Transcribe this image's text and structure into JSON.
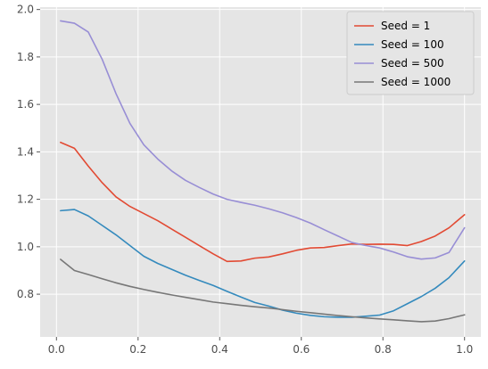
{
  "chart_data": {
    "type": "line",
    "title": "",
    "xlabel": "",
    "ylabel": "",
    "xlim": [
      -0.04,
      1.04
    ],
    "ylim": [
      0.62,
      2.01
    ],
    "xticks": [
      0.0,
      0.2,
      0.4,
      0.6,
      0.8,
      1.0
    ],
    "xtick_labels": [
      "0.0",
      "0.2",
      "0.4",
      "0.6",
      "0.8",
      "1.0"
    ],
    "yticks": [
      0.8,
      1.0,
      1.2,
      1.4,
      1.6,
      1.8,
      2.0
    ],
    "ytick_labels": [
      "0.8",
      "1.0",
      "1.2",
      "1.4",
      "1.6",
      "1.8",
      "2.0"
    ],
    "grid": true,
    "legend_position": "top-right",
    "x": [
      0.01,
      0.044,
      0.078,
      0.112,
      0.146,
      0.18,
      0.214,
      0.248,
      0.282,
      0.316,
      0.35,
      0.384,
      0.418,
      0.452,
      0.486,
      0.52,
      0.554,
      0.588,
      0.622,
      0.656,
      0.69,
      0.724,
      0.758,
      0.792,
      0.826,
      0.86,
      0.894,
      0.928,
      0.962,
      1.0
    ],
    "series": [
      {
        "name": "Seed = 1",
        "color": "#E24A33",
        "values": [
          1.44,
          1.415,
          1.34,
          1.27,
          1.21,
          1.17,
          1.14,
          1.11,
          1.075,
          1.04,
          1.005,
          0.97,
          0.938,
          0.94,
          0.952,
          0.957,
          0.97,
          0.985,
          0.995,
          0.997,
          1.005,
          1.012,
          1.01,
          1.011,
          1.01,
          1.005,
          1.022,
          1.045,
          1.08,
          1.135
        ]
      },
      {
        "name": "Seed = 100",
        "color": "#348ABD",
        "values": [
          1.152,
          1.157,
          1.13,
          1.09,
          1.05,
          1.005,
          0.96,
          0.93,
          0.905,
          0.88,
          0.858,
          0.837,
          0.812,
          0.788,
          0.765,
          0.75,
          0.733,
          0.72,
          0.711,
          0.705,
          0.703,
          0.703,
          0.707,
          0.712,
          0.73,
          0.76,
          0.79,
          0.825,
          0.87,
          0.94
        ]
      },
      {
        "name": "Seed = 500",
        "color": "#988ED5",
        "values": [
          1.952,
          1.942,
          1.905,
          1.79,
          1.645,
          1.52,
          1.43,
          1.37,
          1.32,
          1.28,
          1.25,
          1.222,
          1.2,
          1.187,
          1.175,
          1.16,
          1.143,
          1.123,
          1.1,
          1.072,
          1.045,
          1.018,
          1.005,
          0.995,
          0.978,
          0.958,
          0.948,
          0.953,
          0.976,
          1.08
        ]
      },
      {
        "name": "Seed = 1000",
        "color": "#777777",
        "values": [
          0.947,
          0.9,
          0.883,
          0.865,
          0.848,
          0.833,
          0.82,
          0.808,
          0.797,
          0.787,
          0.777,
          0.767,
          0.76,
          0.753,
          0.747,
          0.742,
          0.735,
          0.728,
          0.722,
          0.716,
          0.71,
          0.705,
          0.7,
          0.696,
          0.692,
          0.688,
          0.684,
          0.687,
          0.697,
          0.713
        ]
      }
    ]
  }
}
